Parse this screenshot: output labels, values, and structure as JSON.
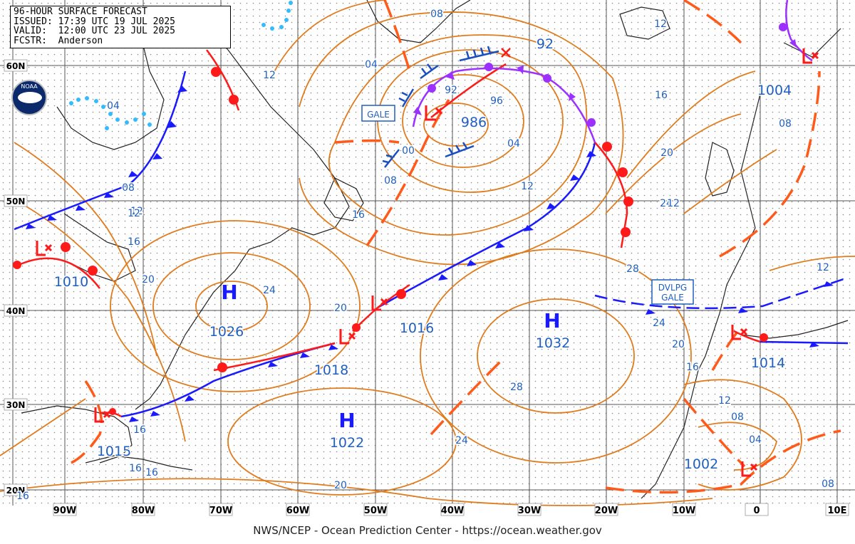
{
  "header": {
    "title": "96-HOUR SURFACE FORECAST",
    "issued_label": "ISSUED:",
    "issued": "17:39 UTC 19 JUL 2025",
    "valid_label": "VALID:",
    "valid": "12:00 UTC 23 JUL 2025",
    "fcstr_label": "FCSTR:",
    "forecaster": "Anderson"
  },
  "agency_logo_text": "NOAA",
  "footer": "NWS/NCEP - Ocean Prediction Center - https://ocean.weather.gov",
  "longitude_labels": [
    "90W",
    "80W",
    "70W",
    "60W",
    "50W",
    "40W",
    "30W",
    "20W",
    "10W",
    "0",
    "10E"
  ],
  "latitude_labels": [
    "60N",
    "50N",
    "40N",
    "30N",
    "20N"
  ],
  "pressure_centers": [
    {
      "type": "H",
      "value": "1026"
    },
    {
      "type": "H",
      "value": "1032"
    },
    {
      "type": "H",
      "value": "1022"
    },
    {
      "type": "L",
      "value": "986"
    },
    {
      "type": "L",
      "value": "1010"
    },
    {
      "type": "L",
      "value": "1015"
    },
    {
      "type": "L",
      "value": "1014"
    },
    {
      "type": "L",
      "value": "1004"
    },
    {
      "type": "L",
      "value": "1002"
    },
    {
      "type": "L",
      "value": "1016"
    },
    {
      "type": "L",
      "value": "1018"
    },
    {
      "type": "L",
      "value": "92"
    }
  ],
  "warnings": [
    "GALE",
    "DVLPG\nGALE"
  ],
  "isobar_labels": [
    "08",
    "04",
    "12",
    "16",
    "20",
    "24",
    "28",
    "00",
    "92",
    "96",
    "04",
    "08",
    "12",
    "16",
    "20",
    "24",
    "28",
    "20",
    "24",
    "16",
    "12",
    "08",
    "04",
    "08",
    "16",
    "12",
    "20",
    "16",
    "12",
    "16",
    "20",
    "24",
    "04",
    "08",
    "08",
    "16"
  ],
  "colors": {
    "isobar": "#e07c1e",
    "cold_front": "#1a1aff",
    "warm_front": "#ff1a1a",
    "occluded_front": "#9b30ff",
    "trough": "#ff5a1a",
    "label_text": "#1f5fbf",
    "grid": "#555555",
    "coastline": "#222222",
    "ice_dots": "#33bbff"
  }
}
